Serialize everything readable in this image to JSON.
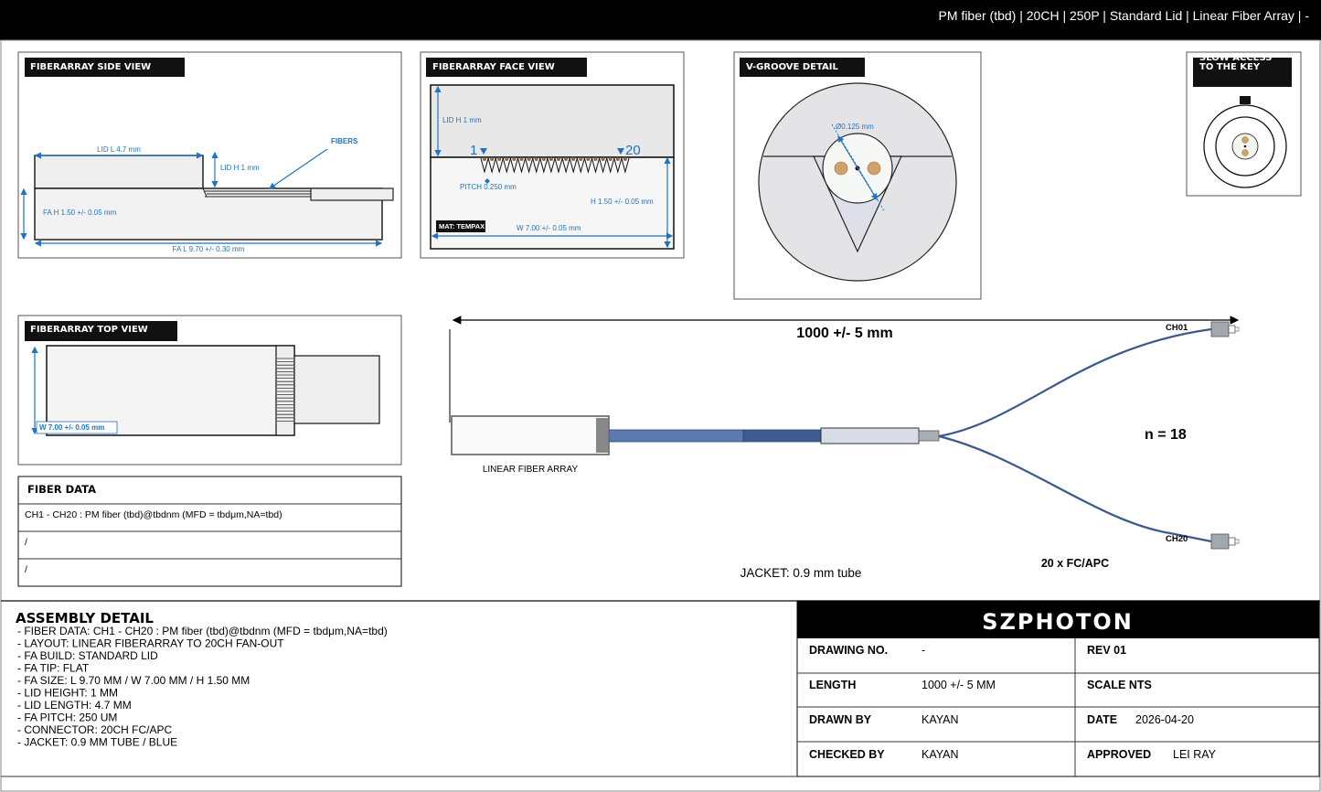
{
  "header": {
    "title": "PM fiber (tbd) | 20CH | 250P | Standard Lid | Linear Fiber Array | -"
  },
  "side_view": {
    "title": "FIBERARRAY SIDE VIEW",
    "lid_length": "LID L 4.7 mm",
    "lid_height": "LID H 1 mm",
    "fibers": "FIBERS",
    "fa_height": "FA H 1.50 +/- 0.05 mm",
    "fa_length": "FA L 9.70 +/- 0.30 mm"
  },
  "face_view": {
    "title": "FIBERARRAY FACE VIEW",
    "lid_height": "LID H 1 mm",
    "first_channel": "1",
    "last_channel": "20",
    "pitch": "PITCH 0.250 mm",
    "height": "H 1.50 +/- 0.05 mm",
    "material": "MAT: TEMPAX",
    "width": "W 7.00 +/- 0.05 mm"
  },
  "vgroove": {
    "title": "V-GROOVE DETAIL",
    "diameter": "Ø0.125 mm"
  },
  "key_view": {
    "title_line1": "SLOW ACCESS",
    "title_line2": "TO THE KEY"
  },
  "top_view": {
    "title": "FIBERARRAY TOP VIEW",
    "width": "W 7.00 +/- 0.05 mm"
  },
  "fiber_data": {
    "title": "FIBER DATA",
    "rows": [
      "CH1 - CH20 : PM fiber (tbd)@tbdnm (MFD = tbdμm,NA=tbd)",
      "/",
      "/"
    ]
  },
  "assembly_drawing": {
    "length": "1000 +/- 5 mm",
    "fa_label": "LINEAR FIBER ARRAY",
    "ch_first": "CH01",
    "ch_last": "CH20",
    "count": "n = 18",
    "connector": "20 x FC/APC",
    "jacket": "JACKET: 0.9 mm tube",
    "colors": {
      "jacket_light": "#5a7ab0",
      "jacket_dark": "#3d5b8f",
      "fiber": "#3b5a8c",
      "dimension": "#1f74c2"
    }
  },
  "assembly_detail": {
    "title": "ASSEMBLY DETAIL",
    "items": [
      "- FIBER DATA: CH1 - CH20 : PM fiber (tbd)@tbdnm (MFD = tbdμm,NA=tbd)",
      "- LAYOUT: LINEAR FIBERARRAY TO 20CH FAN-OUT",
      "- FA BUILD: STANDARD LID",
      "- FA TIP: FLAT",
      "- FA SIZE: L 9.70 MM / W 7.00 MM / H 1.50 MM",
      "- LID HEIGHT: 1 MM",
      "- LID LENGTH: 4.7 MM",
      "- FA PITCH: 250 UM",
      "- CONNECTOR: 20CH FC/APC",
      "- JACKET: 0.9 MM TUBE / BLUE"
    ]
  },
  "title_block": {
    "company": "SZPHOTON",
    "drawing_no_label": "DRAWING NO.",
    "drawing_no": "-",
    "rev": "REV 01",
    "length_label": "LENGTH",
    "length": "1000 +/- 5 MM",
    "scale": "SCALE NTS",
    "drawn_by_label": "DRAWN BY",
    "drawn_by": "KAYAN",
    "date_label": "DATE",
    "date": "2026-04-20",
    "checked_by_label": "CHECKED BY",
    "checked_by": "KAYAN",
    "approved_label": "APPROVED",
    "approved": "LEI RAY"
  }
}
